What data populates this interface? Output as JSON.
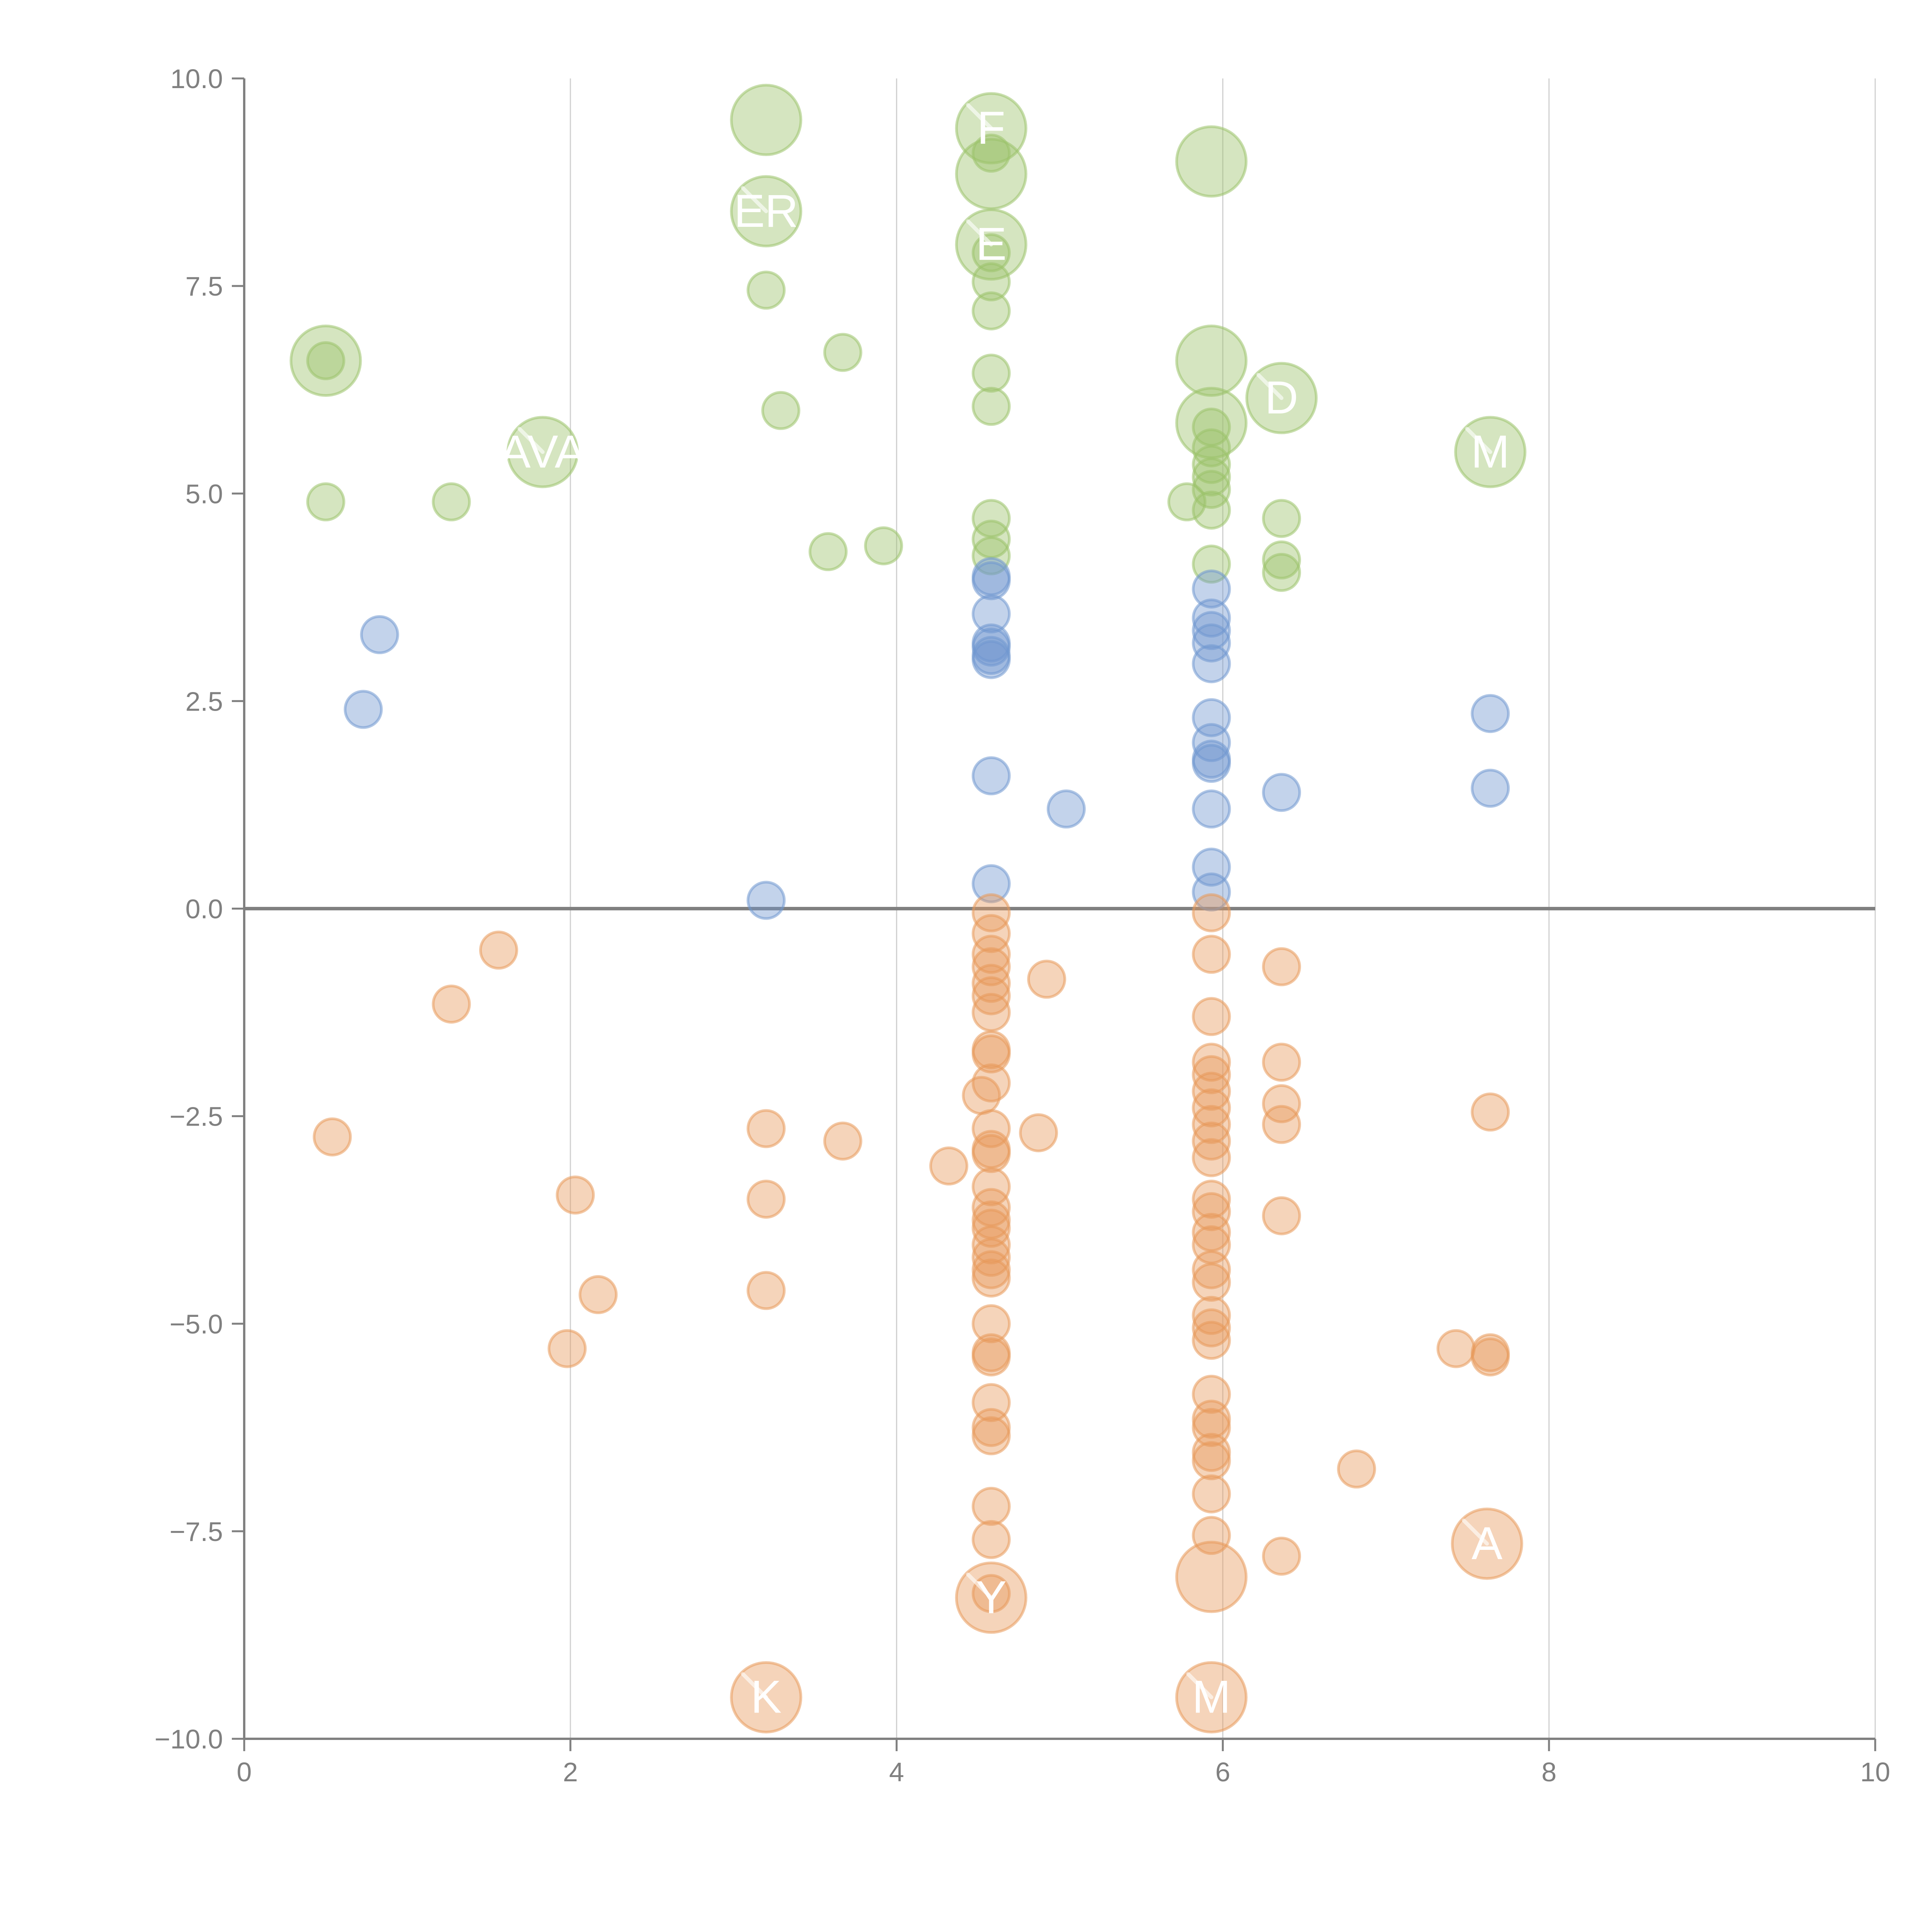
{
  "chart_data": {
    "type": "scatter",
    "title": "",
    "xlabel": "",
    "ylabel": "",
    "xlim": [
      0,
      10
    ],
    "ylim": [
      -10,
      10
    ],
    "x_ticks": [
      "0",
      "2",
      "4",
      "6",
      "8",
      "10"
    ],
    "x_tick_values": [
      0,
      2,
      4,
      6,
      8,
      10
    ],
    "y_ticks": [
      "−10.0",
      "−7.5",
      "−5.0",
      "−2.5",
      "0.0",
      "2.5",
      "5.0",
      "7.5",
      "10.0"
    ],
    "y_tick_values": [
      -10,
      -7.5,
      -5,
      -2.5,
      0,
      2.5,
      5,
      7.5,
      10
    ],
    "grid": "vertical",
    "zero_line": true,
    "colors": {
      "green": "#9bc26a",
      "blue": "#6f97cf",
      "orange": "#e8995a",
      "axis": "#808080"
    },
    "series": [
      {
        "name": "green",
        "color": "#9bc26a",
        "points": [
          {
            "x": 0.5,
            "y": 6.6,
            "big": true
          },
          {
            "x": 0.5,
            "y": 6.6
          },
          {
            "x": 0.5,
            "y": 4.9
          },
          {
            "x": 1.27,
            "y": 4.9
          },
          {
            "x": 1.83,
            "y": 5.5,
            "big": true,
            "label": "AVA"
          },
          {
            "x": 3.2,
            "y": 9.5,
            "big": true
          },
          {
            "x": 3.2,
            "y": 8.4,
            "big": true,
            "label": "ER"
          },
          {
            "x": 3.2,
            "y": 7.45
          },
          {
            "x": 3.67,
            "y": 6.7
          },
          {
            "x": 3.29,
            "y": 6.0
          },
          {
            "x": 3.58,
            "y": 4.3
          },
          {
            "x": 3.92,
            "y": 4.37
          },
          {
            "x": 4.58,
            "y": 9.4,
            "big": true,
            "label": "F"
          },
          {
            "x": 4.58,
            "y": 8.85,
            "big": true
          },
          {
            "x": 4.58,
            "y": 9.1
          },
          {
            "x": 4.58,
            "y": 8.0,
            "big": true,
            "label": "E"
          },
          {
            "x": 4.58,
            "y": 7.9
          },
          {
            "x": 4.58,
            "y": 7.55
          },
          {
            "x": 4.58,
            "y": 7.2
          },
          {
            "x": 4.58,
            "y": 6.45
          },
          {
            "x": 4.58,
            "y": 6.05
          },
          {
            "x": 4.58,
            "y": 4.7
          },
          {
            "x": 4.58,
            "y": 4.45
          },
          {
            "x": 4.58,
            "y": 4.25
          },
          {
            "x": 5.93,
            "y": 9.0,
            "big": true
          },
          {
            "x": 5.93,
            "y": 6.6,
            "big": true
          },
          {
            "x": 5.93,
            "y": 5.85,
            "big": true
          },
          {
            "x": 5.93,
            "y": 5.8
          },
          {
            "x": 5.93,
            "y": 5.55
          },
          {
            "x": 5.93,
            "y": 5.35
          },
          {
            "x": 5.93,
            "y": 5.2
          },
          {
            "x": 5.93,
            "y": 5.05
          },
          {
            "x": 5.78,
            "y": 4.9
          },
          {
            "x": 5.93,
            "y": 4.8
          },
          {
            "x": 5.93,
            "y": 4.15
          },
          {
            "x": 6.36,
            "y": 6.15,
            "big": true,
            "label": "D"
          },
          {
            "x": 6.36,
            "y": 4.7
          },
          {
            "x": 6.36,
            "y": 4.2
          },
          {
            "x": 6.36,
            "y": 4.05
          },
          {
            "x": 7.64,
            "y": 5.5,
            "big": true,
            "label": "M"
          }
        ]
      },
      {
        "name": "blue",
        "color": "#6f97cf",
        "points": [
          {
            "x": 0.83,
            "y": 3.3
          },
          {
            "x": 0.73,
            "y": 2.4
          },
          {
            "x": 3.2,
            "y": 0.1
          },
          {
            "x": 4.58,
            "y": 4.0
          },
          {
            "x": 4.58,
            "y": 3.95
          },
          {
            "x": 4.58,
            "y": 3.55
          },
          {
            "x": 4.58,
            "y": 3.2
          },
          {
            "x": 4.58,
            "y": 3.15
          },
          {
            "x": 4.58,
            "y": 3.05
          },
          {
            "x": 4.58,
            "y": 3.0
          },
          {
            "x": 4.58,
            "y": 1.6
          },
          {
            "x": 4.58,
            "y": 0.3
          },
          {
            "x": 5.04,
            "y": 1.2
          },
          {
            "x": 5.93,
            "y": 3.85
          },
          {
            "x": 5.93,
            "y": 3.5
          },
          {
            "x": 5.93,
            "y": 3.35
          },
          {
            "x": 5.93,
            "y": 3.2
          },
          {
            "x": 5.93,
            "y": 2.95
          },
          {
            "x": 5.93,
            "y": 2.3
          },
          {
            "x": 5.93,
            "y": 2.0
          },
          {
            "x": 5.93,
            "y": 1.8
          },
          {
            "x": 5.93,
            "y": 1.75
          },
          {
            "x": 5.93,
            "y": 1.2
          },
          {
            "x": 5.93,
            "y": 0.5
          },
          {
            "x": 5.93,
            "y": 0.2
          },
          {
            "x": 6.36,
            "y": 1.4
          },
          {
            "x": 7.64,
            "y": 2.35
          },
          {
            "x": 7.64,
            "y": 1.45
          }
        ]
      },
      {
        "name": "orange",
        "color": "#e8995a",
        "points": [
          {
            "x": 1.56,
            "y": -0.5
          },
          {
            "x": 1.27,
            "y": -1.15
          },
          {
            "x": 0.54,
            "y": -2.75
          },
          {
            "x": 2.03,
            "y": -3.45
          },
          {
            "x": 2.17,
            "y": -4.65
          },
          {
            "x": 1.98,
            "y": -5.3
          },
          {
            "x": 3.2,
            "y": -2.65
          },
          {
            "x": 3.2,
            "y": -3.5
          },
          {
            "x": 3.2,
            "y": -4.6
          },
          {
            "x": 3.67,
            "y": -2.8
          },
          {
            "x": 4.32,
            "y": -3.1
          },
          {
            "x": 3.2,
            "y": -9.5,
            "big": true,
            "label": "K"
          },
          {
            "x": 4.58,
            "y": -0.05
          },
          {
            "x": 4.58,
            "y": -0.3
          },
          {
            "x": 4.58,
            "y": -0.55
          },
          {
            "x": 4.58,
            "y": -0.7
          },
          {
            "x": 4.58,
            "y": -0.9
          },
          {
            "x": 4.58,
            "y": -1.05
          },
          {
            "x": 4.58,
            "y": -1.25
          },
          {
            "x": 4.58,
            "y": -1.7
          },
          {
            "x": 4.58,
            "y": -1.75
          },
          {
            "x": 4.58,
            "y": -2.1
          },
          {
            "x": 4.52,
            "y": -2.25
          },
          {
            "x": 4.58,
            "y": -2.65
          },
          {
            "x": 4.58,
            "y": -2.9
          },
          {
            "x": 4.58,
            "y": -2.95
          },
          {
            "x": 4.58,
            "y": -3.35
          },
          {
            "x": 4.58,
            "y": -3.6
          },
          {
            "x": 4.58,
            "y": -3.75
          },
          {
            "x": 4.58,
            "y": -3.85
          },
          {
            "x": 4.58,
            "y": -4.05
          },
          {
            "x": 4.58,
            "y": -4.2
          },
          {
            "x": 4.58,
            "y": -4.35
          },
          {
            "x": 4.58,
            "y": -4.45
          },
          {
            "x": 4.58,
            "y": -5.0
          },
          {
            "x": 4.58,
            "y": -5.35
          },
          {
            "x": 4.58,
            "y": -5.4
          },
          {
            "x": 4.58,
            "y": -5.95
          },
          {
            "x": 4.58,
            "y": -6.25
          },
          {
            "x": 4.58,
            "y": -6.35
          },
          {
            "x": 4.58,
            "y": -7.2
          },
          {
            "x": 4.58,
            "y": -7.6
          },
          {
            "x": 4.58,
            "y": -8.25
          },
          {
            "x": 4.58,
            "y": -8.3,
            "big": true,
            "label": "Y"
          },
          {
            "x": 4.92,
            "y": -0.85
          },
          {
            "x": 4.87,
            "y": -2.7
          },
          {
            "x": 5.93,
            "y": -0.05
          },
          {
            "x": 5.93,
            "y": -0.55
          },
          {
            "x": 5.93,
            "y": -1.3
          },
          {
            "x": 5.93,
            "y": -1.85
          },
          {
            "x": 5.93,
            "y": -2.0
          },
          {
            "x": 5.93,
            "y": -2.2
          },
          {
            "x": 5.93,
            "y": -2.4
          },
          {
            "x": 5.93,
            "y": -2.6
          },
          {
            "x": 5.93,
            "y": -2.8
          },
          {
            "x": 5.93,
            "y": -3.0
          },
          {
            "x": 5.93,
            "y": -3.5
          },
          {
            "x": 5.93,
            "y": -3.65
          },
          {
            "x": 5.93,
            "y": -3.9
          },
          {
            "x": 5.93,
            "y": -4.05
          },
          {
            "x": 5.93,
            "y": -4.35
          },
          {
            "x": 5.93,
            "y": -4.5
          },
          {
            "x": 5.93,
            "y": -4.9
          },
          {
            "x": 5.93,
            "y": -5.05
          },
          {
            "x": 5.93,
            "y": -5.2
          },
          {
            "x": 5.93,
            "y": -5.85
          },
          {
            "x": 5.93,
            "y": -6.15
          },
          {
            "x": 5.93,
            "y": -6.25
          },
          {
            "x": 5.93,
            "y": -6.55
          },
          {
            "x": 5.93,
            "y": -6.65
          },
          {
            "x": 5.93,
            "y": -7.05
          },
          {
            "x": 5.93,
            "y": -7.55
          },
          {
            "x": 5.93,
            "y": -8.05,
            "big": true
          },
          {
            "x": 5.93,
            "y": -9.5,
            "big": true,
            "label": "M"
          },
          {
            "x": 6.36,
            "y": -0.7
          },
          {
            "x": 6.36,
            "y": -1.85
          },
          {
            "x": 6.36,
            "y": -2.35
          },
          {
            "x": 6.36,
            "y": -2.6
          },
          {
            "x": 6.36,
            "y": -3.7
          },
          {
            "x": 6.36,
            "y": -7.8
          },
          {
            "x": 6.82,
            "y": -6.75
          },
          {
            "x": 7.64,
            "y": -2.45
          },
          {
            "x": 7.43,
            "y": -5.3
          },
          {
            "x": 7.64,
            "y": -5.35
          },
          {
            "x": 7.64,
            "y": -5.4
          },
          {
            "x": 7.62,
            "y": -7.65,
            "big": true,
            "label": "A"
          }
        ]
      }
    ]
  }
}
